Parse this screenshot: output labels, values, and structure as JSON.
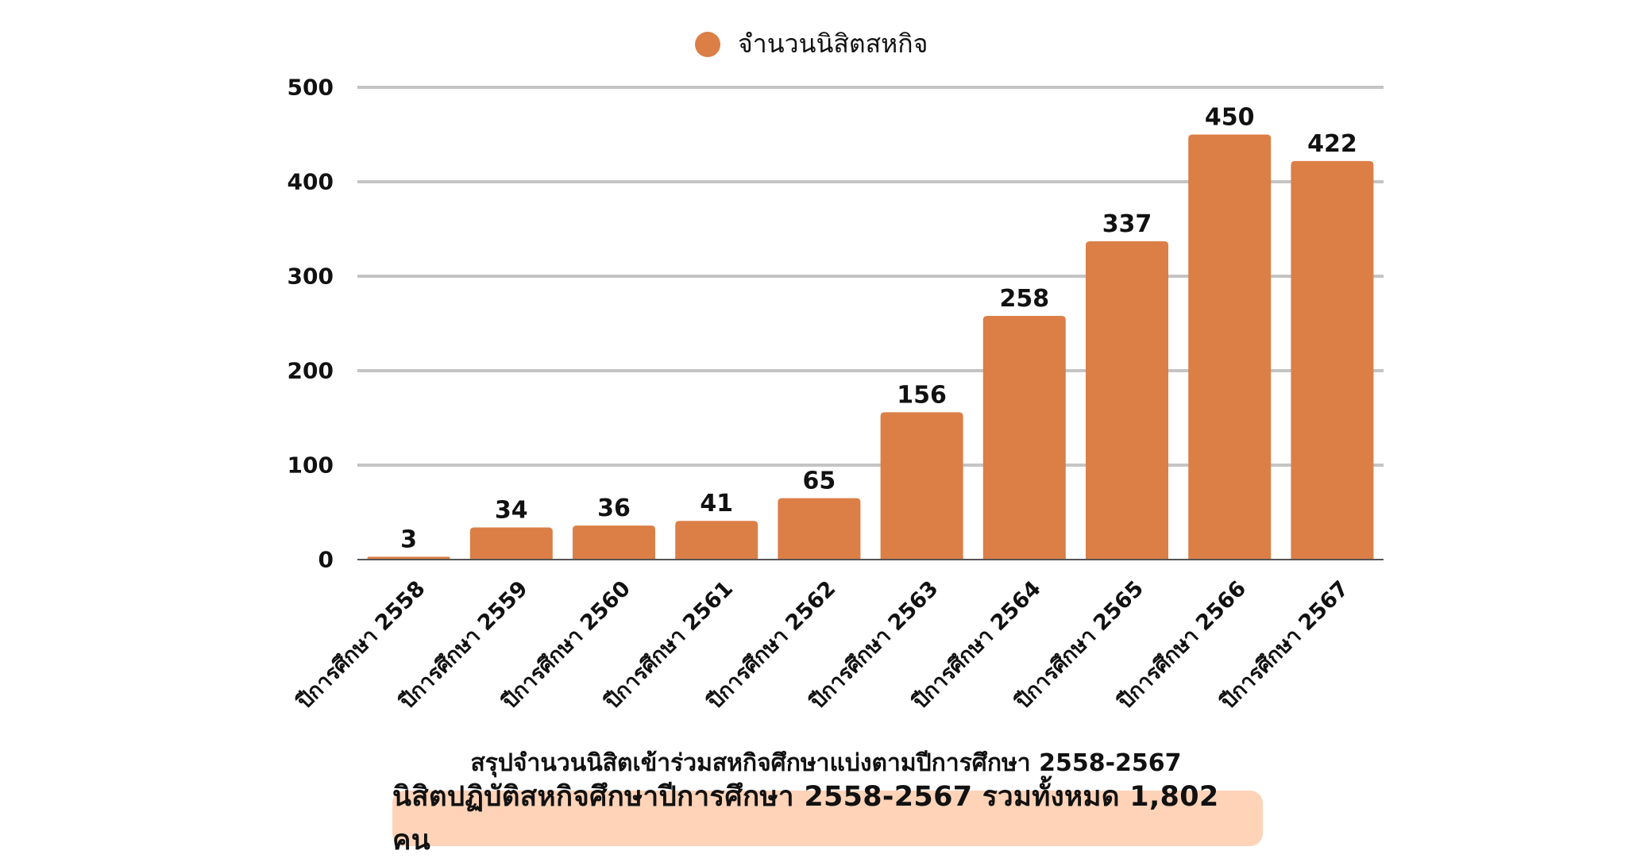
{
  "colors": {
    "bar": "#DB7F47",
    "grid": "#C4C4C4",
    "baseline": "#555555",
    "summary_bg": "#FFD3B8",
    "text": "#111111"
  },
  "legend": {
    "label": "จำนวนนิสิตสหกิจ"
  },
  "chart_data": {
    "type": "bar",
    "categories": [
      "ปีการศึกษา 2558",
      "ปีการศึกษา 2559",
      "ปีการศึกษา 2560",
      "ปีการศึกษา 2561",
      "ปีการศึกษา 2562",
      "ปีการศึกษา 2563",
      "ปีการศึกษา 2564",
      "ปีการศึกษา 2565",
      "ปีการศึกษา 2566",
      "ปีการศึกษา 2567"
    ],
    "series": [
      {
        "name": "จำนวนนิสิตสหกิจ",
        "values": [
          3,
          34,
          36,
          41,
          65,
          156,
          258,
          337,
          450,
          422
        ]
      }
    ],
    "ylim": [
      0,
      500
    ],
    "yticks": [
      0,
      100,
      200,
      300,
      400,
      500
    ],
    "grid": true,
    "legend_position": "top-center",
    "data_labels": true
  },
  "caption": "สรุปจำนวนนิสิตเข้าร่วมสหกิจศึกษาแบ่งตามปีการศึกษา 2558-2567",
  "summary": "นิสิตปฏิบัติสหกิจศึกษาปีการศึกษา 2558-2567 รวมทั้งหมด 1,802 คน"
}
